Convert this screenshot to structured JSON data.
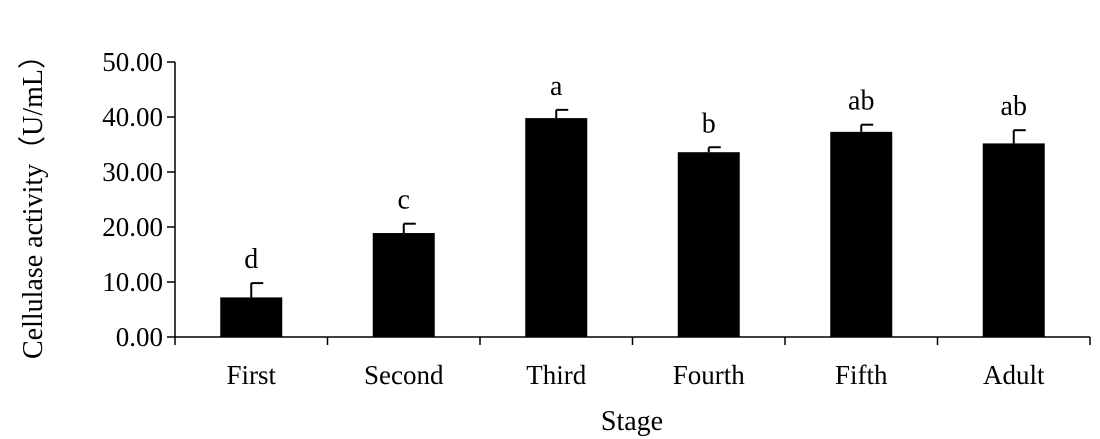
{
  "chart_data": {
    "type": "bar",
    "title": "",
    "xlabel": "Stage",
    "ylabel": "Cellulase activity（U/mL）",
    "ylim": [
      0,
      50
    ],
    "yticks": [
      "0.00",
      "10.00",
      "20.00",
      "30.00",
      "40.00",
      "50.00"
    ],
    "grid": false,
    "legend": "none",
    "categories": [
      "First",
      "Second",
      "Third",
      "Fourth",
      "Fifth",
      "Adult"
    ],
    "values": [
      7.2,
      18.9,
      39.8,
      33.6,
      37.3,
      35.2
    ],
    "errors": [
      2.6,
      1.7,
      1.5,
      0.9,
      1.3,
      2.4
    ],
    "significance": [
      "d",
      "c",
      "a",
      "b",
      "ab",
      "ab"
    ],
    "bar_color": "#000000"
  }
}
